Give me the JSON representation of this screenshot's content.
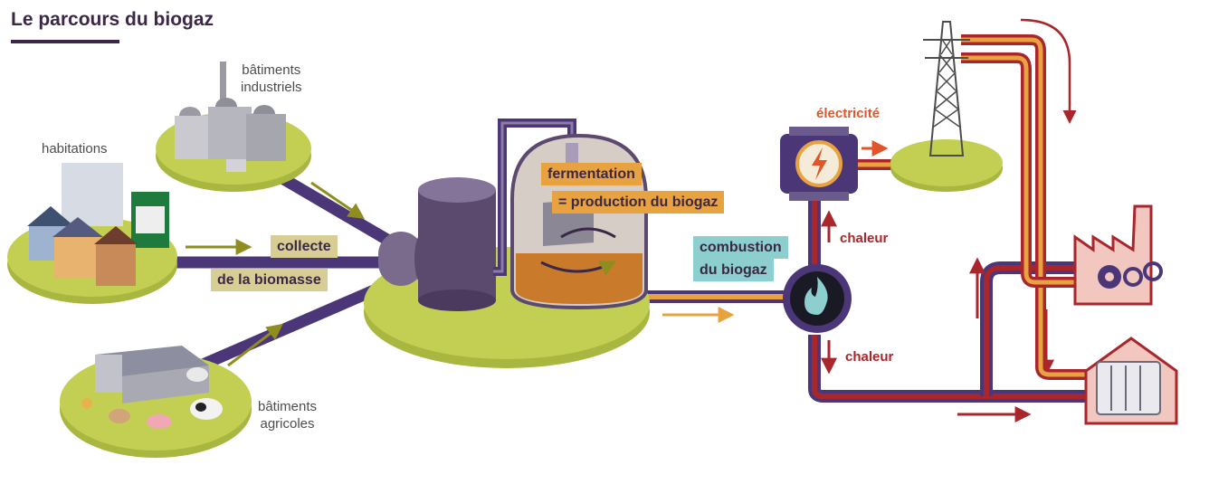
{
  "title": "Le parcours du biogaz",
  "labels": {
    "industrial_1": "bâtiments",
    "industrial_2": "industriels",
    "housing": "habitations",
    "agricultural_1": "bâtiments",
    "agricultural_2": "agricoles"
  },
  "steps": {
    "collect_1": "collecte",
    "collect_2": "de la biomasse",
    "fermentation_1": "fermentation",
    "fermentation_2": "= production du biogaz",
    "combustion_1": "combustion",
    "combustion_2": "du biogaz",
    "electricity": "électricité",
    "heat_up": "chaleur",
    "heat_down": "chaleur"
  },
  "colors": {
    "island": "#c3cf52",
    "pipe_purple": "#4b3777",
    "pipe_red": "#a8262c",
    "pipe_orange": "#e9a240",
    "arrow_olive": "#8f8d1f",
    "title": "#3a2846"
  }
}
